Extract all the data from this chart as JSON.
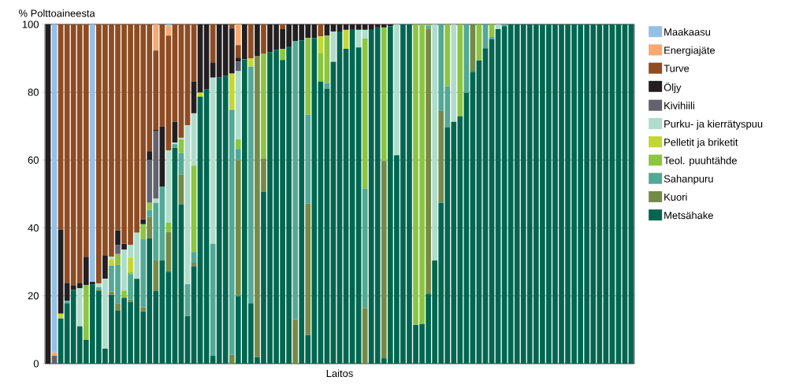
{
  "chart_data": {
    "type": "bar",
    "stacked": true,
    "ylabel": "% Polttoaineesta",
    "xlabel": "Laitos",
    "ylim": [
      0,
      100
    ],
    "yticks": [
      0,
      20,
      40,
      60,
      80,
      100
    ],
    "grid": "y",
    "legend": "right",
    "categories": [
      null,
      null,
      null,
      null,
      null,
      null,
      null,
      null,
      null,
      null,
      null,
      null,
      null,
      null,
      null,
      null,
      null,
      null,
      null,
      null,
      null,
      null,
      null,
      null,
      null,
      null,
      null,
      null,
      null,
      null,
      null,
      null,
      null,
      null,
      null,
      null,
      null,
      null,
      null,
      null,
      null,
      null,
      null,
      null,
      null,
      null,
      null,
      null,
      null,
      null,
      null,
      null,
      null,
      null,
      null,
      null,
      null,
      null,
      null,
      null,
      null,
      null,
      null,
      null,
      null,
      null,
      null,
      null,
      null,
      null,
      null,
      null,
      null,
      null,
      null,
      null,
      null,
      null,
      null,
      null,
      null,
      null,
      null,
      null,
      null,
      null,
      null,
      null,
      null,
      null,
      null,
      null,
      null
    ],
    "series": [
      {
        "name": "Metsähake",
        "color": "#006650",
        "values": [
          0,
          0,
          13.3,
          17.8,
          21.7,
          11,
          7,
          23.4,
          21.5,
          4.4,
          20.3,
          15.7,
          19.4,
          18.2,
          25,
          15.4,
          36.9,
          21.5,
          30.4,
          27.1,
          63.6,
          47,
          14,
          28.7,
          78.7,
          80.8,
          2.3,
          84.3,
          84.8,
          0,
          19.9,
          89.7,
          17.8,
          1.9,
          50.7,
          91.8,
          92.5,
          89.5,
          93.5,
          0,
          95.3,
          8.4,
          96,
          83.2,
          81.1,
          89,
          97.9,
          92.8,
          98.4,
          93.2,
          0,
          98.4,
          99.1,
          1.6,
          99.5,
          61.4,
          100,
          100,
          11.4,
          11.7,
          20.6,
          30.4,
          47.4,
          69.6,
          71.3,
          72.9,
          79.9,
          86,
          89.3,
          93,
          95.6,
          98.6,
          99.5,
          100,
          100,
          100,
          100,
          100,
          100,
          100,
          100,
          100,
          100,
          100,
          100,
          100,
          100,
          100,
          100,
          100,
          100,
          100,
          100
        ]
      },
      {
        "name": "Kuori",
        "color": "#748b48",
        "values": [
          0,
          0,
          0,
          0,
          0,
          0,
          0,
          0,
          0.5,
          0,
          0.9,
          2.1,
          0,
          0.7,
          0,
          1.2,
          6.3,
          8.9,
          0,
          11.7,
          0,
          8.8,
          0,
          1,
          0,
          0,
          0,
          0,
          0,
          2.6,
          40.1,
          0,
          0,
          88.8,
          9.8,
          0,
          0,
          0,
          0,
          13.1,
          0,
          38.8,
          0,
          0,
          0,
          0,
          0,
          0,
          0,
          0,
          16.4,
          0,
          0,
          58.2,
          0,
          0,
          0,
          0,
          0,
          0,
          78.2,
          0,
          27.1,
          0,
          0,
          0,
          0,
          14,
          0,
          0,
          0,
          0,
          0,
          0,
          0,
          0,
          0,
          0,
          0,
          0,
          0,
          0,
          0,
          0,
          0,
          0,
          0,
          0,
          0,
          0,
          0,
          0,
          0
        ]
      },
      {
        "name": "Sahanpuru",
        "color": "#52a995",
        "values": [
          0,
          0,
          0,
          0.7,
          0,
          0,
          0,
          0,
          0.5,
          0,
          7.7,
          11.2,
          0,
          7.5,
          0,
          20.1,
          2.1,
          17,
          21.7,
          0,
          1.1,
          6.3,
          9.4,
          3.2,
          0,
          0,
          33,
          0,
          0,
          72.2,
          3.3,
          0,
          69.8,
          0,
          0,
          0,
          0,
          0,
          0,
          82,
          0,
          26.2,
          0,
          0,
          1.6,
          0,
          0,
          0,
          0,
          0,
          35.2,
          0,
          0,
          0,
          0,
          0,
          0,
          0,
          0,
          0,
          0.7,
          0,
          25.5,
          12.2,
          0,
          0,
          20.1,
          0,
          0,
          7,
          0.7,
          0,
          0.5,
          0,
          0,
          0,
          0,
          0,
          0,
          0,
          0,
          0,
          0,
          0,
          0,
          0,
          0,
          0,
          0,
          0,
          0,
          0,
          0
        ]
      },
      {
        "name": "Teol. puuhtähde",
        "color": "#8cc540",
        "values": [
          0,
          0,
          0,
          0,
          0,
          0,
          16.1,
          0,
          0,
          0,
          0,
          3.3,
          2.1,
          0.5,
          0,
          4.4,
          2.1,
          0,
          0,
          2.8,
          0,
          4,
          0,
          25.5,
          0,
          0,
          0,
          0,
          0,
          0,
          2.8,
          0,
          0,
          0,
          30.9,
          0,
          0,
          3.3,
          0,
          0,
          0,
          22.6,
          0,
          8.4,
          14,
          0,
          0,
          0,
          0,
          0,
          44.2,
          0,
          0,
          39.3,
          0,
          0,
          0,
          0,
          88.6,
          88.3,
          0.5,
          0,
          0,
          18.2,
          0,
          27.1,
          0,
          0,
          10.7,
          0,
          3.7,
          0,
          0,
          0,
          0,
          0,
          0,
          0,
          0,
          0,
          0,
          0,
          0,
          0,
          0,
          0,
          0,
          0,
          0,
          0,
          0,
          0,
          0
        ]
      },
      {
        "name": "Pelletit ja briketit",
        "color": "#c2d72f",
        "values": [
          0,
          0,
          1.4,
          0,
          0,
          0,
          0,
          0,
          0,
          0,
          1.9,
          0,
          0,
          4.2,
          0,
          0,
          0,
          0,
          0,
          0,
          0,
          0,
          0,
          0,
          1.2,
          0,
          0,
          0,
          0,
          10.7,
          0,
          0,
          2.4,
          0,
          0,
          0,
          0,
          0,
          0,
          0,
          0,
          0,
          0,
          4.9,
          0,
          0,
          0,
          5.6,
          0,
          0,
          0,
          0,
          0,
          0,
          0,
          0,
          0,
          0,
          0,
          0,
          0,
          0,
          0,
          0,
          0,
          0,
          0,
          0,
          0,
          0,
          0,
          0,
          0,
          0,
          0,
          0,
          0,
          0,
          0,
          0,
          0,
          0,
          0,
          0,
          0,
          0,
          0,
          0,
          0,
          0,
          0,
          0,
          0
        ]
      },
      {
        "name": "Purku- ja kierrätyspuu",
        "color": "#b0dccb",
        "values": [
          0,
          0,
          0,
          0,
          0,
          11.2,
          0,
          0,
          1.1,
          20.6,
          0.7,
          0,
          12.1,
          3.9,
          13.6,
          0,
          0,
          1.2,
          0,
          21.3,
          0.5,
          0.5,
          46.9,
          15.4,
          0,
          0,
          49,
          0,
          0,
          0,
          20.1,
          0,
          0,
          0,
          0,
          0,
          0,
          0,
          0,
          0,
          0,
          0,
          0,
          0,
          0,
          8.9,
          0,
          0,
          0,
          5.2,
          2.6,
          0,
          0,
          0,
          0,
          38.6,
          0,
          0,
          0,
          0,
          0,
          69.6,
          0,
          0,
          28.7,
          0,
          0,
          0,
          0,
          0,
          0,
          1.4,
          0,
          0,
          0,
          0,
          0,
          0,
          0,
          0,
          0,
          0,
          0,
          0,
          0,
          0,
          0,
          0,
          0,
          0,
          0,
          0,
          0
        ]
      },
      {
        "name": "Kivihiili",
        "color": "#62636f",
        "values": [
          0,
          2.3,
          0,
          0,
          0,
          0,
          0,
          0,
          0,
          0,
          0,
          2.6,
          0,
          0,
          0,
          0,
          12.6,
          19.9,
          0,
          0,
          0,
          0,
          0,
          0,
          0,
          0,
          0,
          0,
          0,
          0,
          2.8,
          0,
          0,
          0,
          0,
          0,
          0,
          0,
          0,
          0,
          0,
          0,
          0,
          0,
          0,
          0,
          0,
          0,
          0,
          0,
          0,
          0,
          0,
          0,
          0,
          0,
          0,
          0,
          0,
          0,
          0,
          0,
          0,
          0,
          0,
          0,
          0,
          0,
          0,
          0,
          0,
          0,
          0,
          0,
          0,
          0,
          0,
          0,
          0,
          0,
          0,
          0,
          0,
          0,
          0,
          0,
          0,
          0,
          0,
          0,
          0,
          0,
          0
        ]
      },
      {
        "name": "Öljy",
        "color": "#231f20",
        "values": [
          100,
          0,
          24.8,
          5.3,
          1.4,
          1.6,
          8.4,
          0.7,
          0,
          6.8,
          0,
          4.4,
          1.7,
          0,
          0,
          1.4,
          2.6,
          0.4,
          17.8,
          0,
          6.1,
          0,
          0,
          9.4,
          20.1,
          19.2,
          4.5,
          15.7,
          15.2,
          13.3,
          1.2,
          10.3,
          0,
          9.3,
          0,
          8.2,
          7.5,
          5.8,
          6.5,
          4.9,
          4.7,
          4,
          4,
          0,
          3.3,
          2.1,
          2.1,
          1.6,
          1.6,
          1.6,
          1.6,
          1.6,
          0.9,
          0.9,
          0.5,
          0,
          0,
          0,
          0,
          0,
          0,
          0,
          0,
          0,
          0,
          0,
          0,
          0,
          0,
          0,
          0,
          0,
          0,
          0,
          0,
          0,
          0,
          0,
          0,
          0,
          0,
          0,
          0,
          0,
          0,
          0,
          0,
          0,
          0,
          0,
          0,
          0,
          0
        ]
      },
      {
        "name": "Turve",
        "color": "#8f4c22",
        "values": [
          0,
          0,
          60.5,
          76.2,
          76.9,
          76.2,
          68.5,
          0,
          76.4,
          68.2,
          68.5,
          60.7,
          64.7,
          65,
          61.4,
          57.5,
          37.4,
          23.4,
          30.1,
          33.8,
          28.7,
          33.4,
          29.7,
          16.8,
          0,
          0,
          11.2,
          0,
          0,
          1.2,
          3.7,
          0,
          10,
          0,
          8.6,
          0,
          0,
          1.4,
          0,
          0,
          0,
          0,
          0,
          3.5,
          0,
          0,
          0,
          0,
          0,
          0,
          0,
          0,
          0,
          0,
          0,
          0,
          0,
          0,
          0,
          0,
          0,
          0,
          0,
          0,
          0,
          0,
          0,
          0,
          0,
          0,
          0,
          0,
          0,
          0,
          0,
          0,
          0,
          0,
          0,
          0,
          0,
          0,
          0,
          0,
          0,
          0,
          0,
          0,
          0,
          0,
          0,
          0,
          0
        ]
      },
      {
        "name": "Energiajäte",
        "color": "#f9a870",
        "values": [
          0,
          1,
          0,
          0,
          0,
          0,
          0,
          0,
          0,
          0,
          0,
          0,
          0,
          0,
          0,
          0,
          0,
          7.7,
          0,
          2.8,
          0,
          0,
          0,
          0,
          0,
          0,
          0,
          0,
          0,
          0,
          6.1,
          0,
          0,
          0,
          0,
          0,
          0,
          0,
          0,
          0,
          0,
          0,
          0,
          0,
          0,
          0,
          0,
          0,
          0,
          0,
          0,
          0,
          0,
          0,
          0,
          0,
          0,
          0,
          0,
          0,
          0,
          0,
          0,
          0,
          0,
          0,
          0,
          0,
          0,
          0,
          0,
          0,
          0,
          0,
          0,
          0,
          0,
          0,
          0,
          0,
          0,
          0,
          0,
          0,
          0,
          0,
          0,
          0,
          0,
          0,
          0,
          0,
          0
        ]
      },
      {
        "name": "Maakaasu",
        "color": "#95c0e6",
        "values": [
          0,
          96.7,
          0,
          0,
          0,
          0,
          0,
          75.9,
          0,
          0,
          0,
          0,
          0,
          0,
          0,
          0,
          0,
          0,
          0,
          0.5,
          0,
          0,
          0,
          0,
          0,
          0,
          0,
          0,
          0,
          0,
          0,
          0,
          0,
          0,
          0,
          0,
          0,
          0,
          0,
          0,
          0,
          0,
          0,
          0,
          0,
          0,
          0,
          0,
          0,
          0,
          0,
          0,
          0,
          0,
          0,
          0,
          0,
          0,
          0,
          0,
          0,
          0,
          0,
          0,
          0,
          0,
          0,
          0,
          0,
          0,
          0,
          0,
          0,
          0,
          0,
          0,
          0,
          0,
          0,
          0,
          0,
          0,
          0,
          0,
          0,
          0,
          0,
          0,
          0,
          0,
          0,
          0,
          0
        ]
      }
    ]
  }
}
